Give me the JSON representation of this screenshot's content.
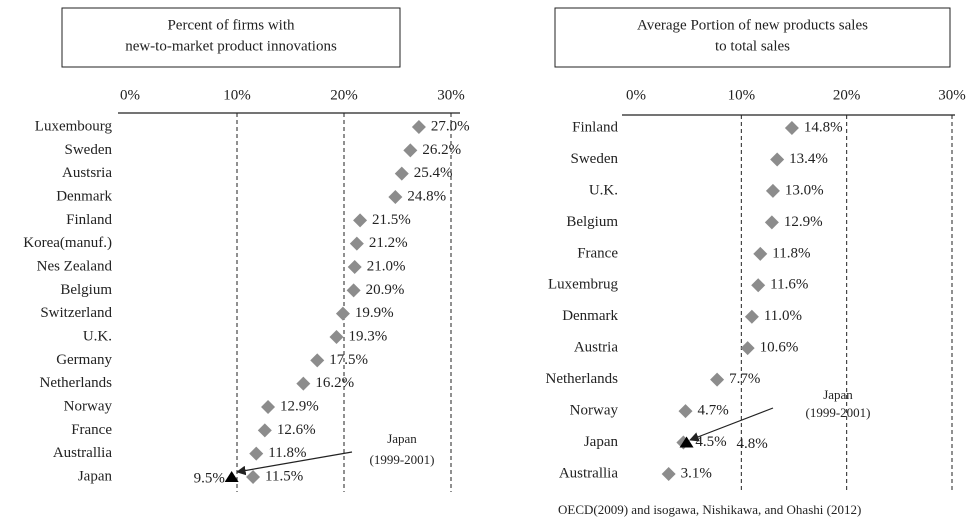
{
  "chart_data": [
    {
      "type": "dot",
      "title": [
        "Percent of firms with",
        "new-to-market product innovations"
      ],
      "categories": [
        "Luxembourg",
        "Sweden",
        "Austsria",
        "Denmark",
        "Finland",
        "Korea(manuf.)",
        "Nes Zealand",
        "Belgium",
        "Switzerland",
        "U.K.",
        "Germany",
        "Netherlands",
        "Norway",
        "France",
        "Australlia",
        "Japan"
      ],
      "values": [
        27.0,
        26.2,
        25.4,
        24.8,
        21.5,
        21.2,
        21.0,
        20.9,
        19.9,
        19.3,
        17.5,
        16.2,
        12.9,
        12.6,
        11.8,
        11.5
      ],
      "value_labels": [
        "27.0%",
        "26.2%",
        "25.4%",
        "24.8%",
        "21.5%",
        "21.2%",
        "21.0%",
        "20.9%",
        "19.9%",
        "19.3%",
        "17.5%",
        "16.2%",
        "12.9%",
        "12.6%",
        "11.8%",
        "11.5%"
      ],
      "color": "#8c8c8c",
      "annotation": {
        "text": [
          "Japan",
          "(1999-2001)"
        ],
        "value": 9.5,
        "value_label": "9.5%",
        "color": "#000000"
      },
      "xlim": [
        0,
        30
      ],
      "xticks": [
        {
          "value": 0,
          "label": "0%"
        },
        {
          "value": 10,
          "label": "10%"
        },
        {
          "value": 20,
          "label": "20%"
        },
        {
          "value": 30,
          "label": "30%"
        }
      ],
      "grid": true
    },
    {
      "type": "dot",
      "title": [
        "Average Portion of new products sales",
        "to total sales"
      ],
      "categories": [
        "Finland",
        "Sweden",
        "U.K.",
        "Belgium",
        "France",
        "Luxembrug",
        "Denmark",
        "Austria",
        "Netherlands",
        "Norway",
        "Japan",
        "Australlia"
      ],
      "values": [
        14.8,
        13.4,
        13.0,
        12.9,
        11.8,
        11.6,
        11.0,
        10.6,
        7.7,
        4.7,
        4.5,
        3.1
      ],
      "value_labels": [
        "14.8%",
        "13.4%",
        "13.0%",
        "12.9%",
        "11.8%",
        "11.6%",
        "11.0%",
        "10.6%",
        "7.7%",
        "4.7%",
        "4.5%",
        "3.1%"
      ],
      "color": "#8c8c8c",
      "annotation": {
        "text": [
          "Japan",
          "(1999-2001)"
        ],
        "value": 4.8,
        "value_label": "4.8%",
        "color": "#000000"
      },
      "xlim": [
        0,
        30
      ],
      "xticks": [
        {
          "value": 0,
          "label": "0%"
        },
        {
          "value": 10,
          "label": "10%"
        },
        {
          "value": 20,
          "label": "20%"
        },
        {
          "value": 30,
          "label": "30%"
        }
      ],
      "grid": true,
      "source": "OECD(2009) and isogawa, Nishikawa, and Ohashi (2012)"
    }
  ]
}
